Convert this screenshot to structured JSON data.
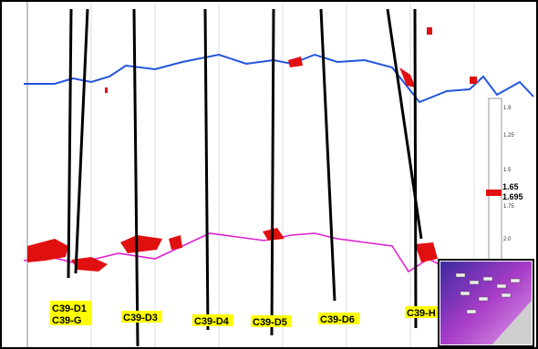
{
  "well_labels": [
    [
      "C39-D1",
      "C39-G"
    ],
    [
      "C39-D3"
    ],
    [
      "C39-D4"
    ],
    [
      "C39-D5"
    ],
    [
      "C39-D6"
    ],
    [
      "C39-H"
    ]
  ],
  "scale": {
    "ticks": [
      "1.9",
      "1.25",
      "1.5",
      "1.75",
      "2.0"
    ],
    "marker": [
      "1.65",
      "1.695"
    ]
  }
}
